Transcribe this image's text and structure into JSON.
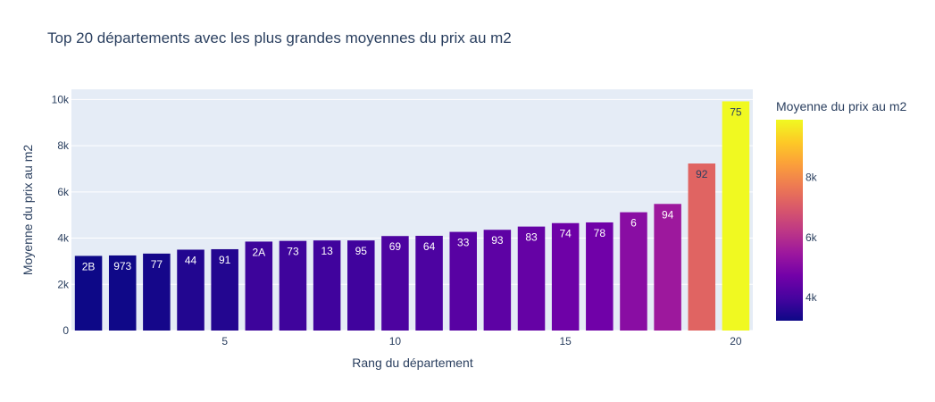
{
  "chart_data": {
    "type": "bar",
    "title": "Top 20 départements avec les plus grandes moyennes du prix au m2",
    "xlabel": "Rang du département",
    "ylabel": "Moyenne du prix au m2",
    "x": [
      1,
      2,
      3,
      4,
      5,
      6,
      7,
      8,
      9,
      10,
      11,
      12,
      13,
      14,
      15,
      16,
      17,
      18,
      19,
      20
    ],
    "labels": [
      "2B",
      "973",
      "77",
      "44",
      "91",
      "2A",
      "73",
      "13",
      "95",
      "69",
      "64",
      "33",
      "93",
      "83",
      "74",
      "78",
      "6",
      "94",
      "92",
      "75"
    ],
    "values": [
      3230,
      3250,
      3330,
      3500,
      3520,
      3850,
      3880,
      3900,
      3900,
      4090,
      4100,
      4270,
      4360,
      4500,
      4650,
      4680,
      5120,
      5480,
      7230,
      9920
    ],
    "x_ticks": [
      "5",
      "10",
      "15",
      "20"
    ],
    "y_ticks": [
      "0",
      "2k",
      "4k",
      "6k",
      "8k",
      "10k"
    ],
    "ylim": [
      0,
      10440
    ],
    "grid": true,
    "colorbar": {
      "title": "Moyenne du prix au m2",
      "ticks": [
        "4k",
        "6k",
        "8k"
      ],
      "tick_values": [
        4000,
        6000,
        8000
      ],
      "range": [
        3230,
        9920
      ],
      "colorscale": [
        "#0d0887",
        "#46039f",
        "#7201a8",
        "#9c179e",
        "#bd3786",
        "#d8576b",
        "#ed7953",
        "#fb9f3a",
        "#fdca26",
        "#f0f921"
      ]
    }
  }
}
